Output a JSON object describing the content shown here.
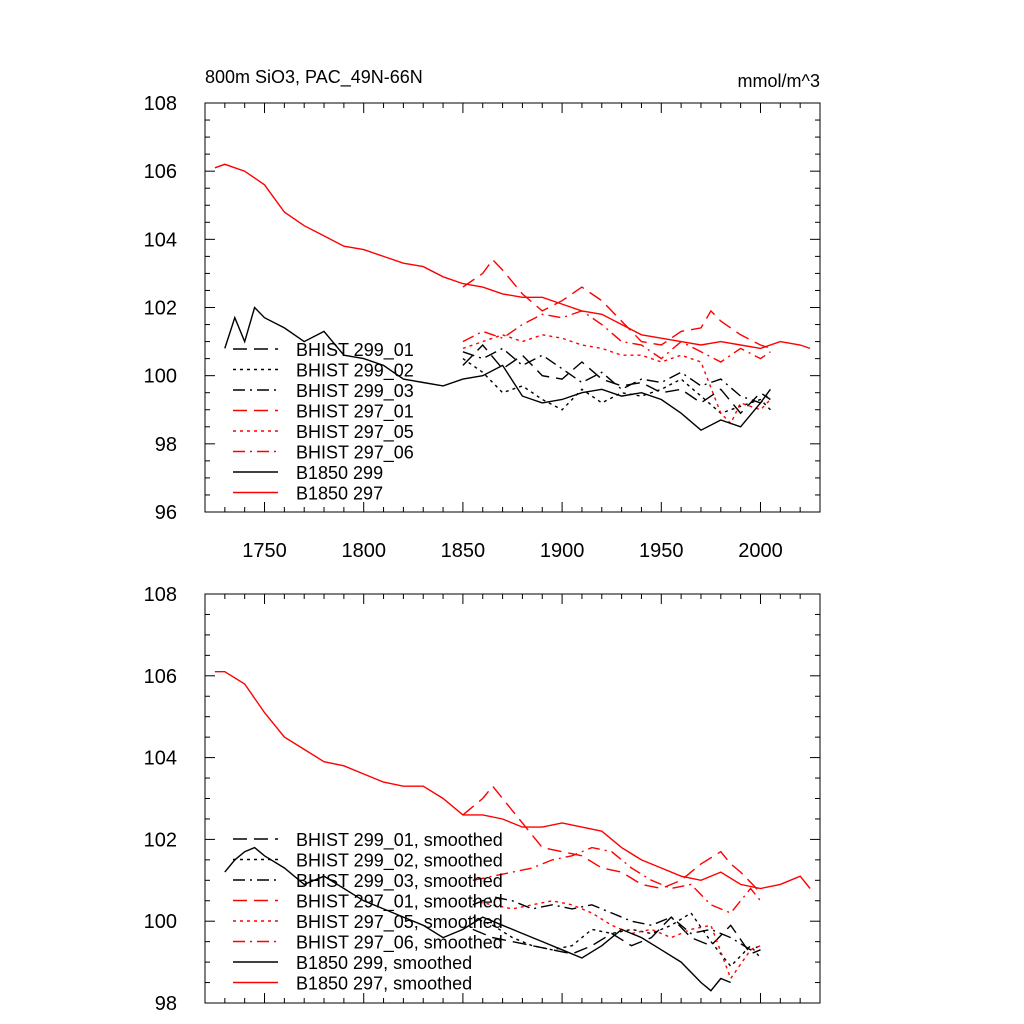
{
  "chart_data": [
    {
      "type": "line",
      "title": "800m SiO3, PAC_49N-66N",
      "units": "mmol/m^3",
      "xlabel": "",
      "ylabel": "",
      "xlim": [
        1720,
        2030
      ],
      "ylim": [
        96,
        108
      ],
      "x_ticks": [
        1750,
        1800,
        1850,
        1900,
        1950,
        2000
      ],
      "y_ticks": [
        96,
        98,
        100,
        102,
        104,
        106,
        108
      ],
      "grid": false,
      "legend_position": "bottom-left",
      "series": [
        {
          "name": "BHIST 299_01",
          "color": "#000000",
          "dash": "dashed",
          "x": [
            1850,
            1860,
            1870,
            1880,
            1890,
            1900,
            1910,
            1920,
            1930,
            1940,
            1950,
            1960,
            1970,
            1980,
            1990,
            2000,
            2005
          ],
          "y": [
            100.3,
            100.9,
            100.2,
            100.6,
            100.0,
            99.9,
            100.4,
            99.9,
            99.7,
            99.8,
            99.5,
            99.6,
            99.2,
            99.6,
            98.9,
            99.5,
            99.3
          ]
        },
        {
          "name": "BHIST 299_02",
          "color": "#000000",
          "dash": "dotted",
          "x": [
            1850,
            1860,
            1870,
            1880,
            1890,
            1900,
            1910,
            1920,
            1930,
            1940,
            1950,
            1960,
            1970,
            1980,
            1990,
            2000,
            2005
          ],
          "y": [
            100.5,
            100.1,
            99.5,
            99.7,
            99.3,
            99.0,
            99.6,
            99.2,
            99.5,
            99.4,
            99.6,
            99.9,
            99.4,
            98.9,
            99.1,
            99.3,
            99.0
          ]
        },
        {
          "name": "BHIST 299_03",
          "color": "#000000",
          "dash": "dashdot",
          "x": [
            1850,
            1860,
            1870,
            1880,
            1890,
            1900,
            1910,
            1920,
            1930,
            1940,
            1950,
            1960,
            1970,
            1980,
            1990,
            2000,
            2005
          ],
          "y": [
            100.7,
            100.5,
            100.8,
            100.3,
            100.6,
            100.2,
            99.8,
            100.1,
            99.6,
            99.9,
            99.8,
            100.1,
            99.7,
            99.9,
            99.4,
            99.2,
            99.5
          ]
        },
        {
          "name": "BHIST 297_01",
          "color": "#ff0000",
          "dash": "dashed",
          "x": [
            1850,
            1860,
            1865,
            1870,
            1880,
            1890,
            1900,
            1910,
            1920,
            1930,
            1940,
            1950,
            1960,
            1970,
            1975,
            1980,
            1990,
            2000,
            2005
          ],
          "y": [
            102.6,
            103.0,
            103.4,
            103.1,
            102.4,
            101.9,
            102.2,
            102.6,
            102.2,
            101.6,
            101.0,
            100.9,
            101.3,
            101.4,
            101.9,
            101.6,
            101.2,
            100.9,
            100.8
          ]
        },
        {
          "name": "BHIST 297_05",
          "color": "#ff0000",
          "dash": "dotted",
          "x": [
            1850,
            1860,
            1870,
            1880,
            1890,
            1900,
            1910,
            1920,
            1930,
            1940,
            1950,
            1960,
            1970,
            1980,
            1985,
            1990,
            2000,
            2005
          ],
          "y": [
            100.8,
            101.0,
            101.2,
            101.0,
            101.2,
            101.1,
            100.9,
            100.8,
            100.6,
            100.6,
            100.4,
            100.6,
            100.4,
            98.9,
            98.6,
            99.2,
            99.0,
            99.3
          ]
        },
        {
          "name": "BHIST 297_06",
          "color": "#ff0000",
          "dash": "dashdot",
          "x": [
            1850,
            1860,
            1870,
            1880,
            1890,
            1900,
            1910,
            1920,
            1930,
            1940,
            1950,
            1960,
            1970,
            1980,
            1990,
            2000,
            2005
          ],
          "y": [
            101.0,
            101.3,
            101.1,
            101.5,
            101.8,
            101.7,
            101.9,
            101.5,
            101.0,
            100.9,
            100.5,
            101.0,
            100.7,
            100.4,
            100.8,
            100.5,
            100.7
          ]
        },
        {
          "name": "B1850 299",
          "color": "#000000",
          "dash": "solid",
          "x": [
            1730,
            1735,
            1740,
            1745,
            1750,
            1760,
            1770,
            1780,
            1790,
            1800,
            1810,
            1820,
            1830,
            1840,
            1850,
            1860,
            1870,
            1880,
            1890,
            1900,
            1910,
            1920,
            1930,
            1940,
            1950,
            1960,
            1970,
            1980,
            1990,
            2000,
            2005
          ],
          "y": [
            100.8,
            101.7,
            101.0,
            102.0,
            101.7,
            101.4,
            101.0,
            101.3,
            100.6,
            100.5,
            100.3,
            99.9,
            99.8,
            99.7,
            99.9,
            100.0,
            100.3,
            99.4,
            99.2,
            99.3,
            99.5,
            99.6,
            99.4,
            99.5,
            99.3,
            98.9,
            98.4,
            98.7,
            98.5,
            99.2,
            99.6
          ]
        },
        {
          "name": "B1850 297",
          "color": "#ff0000",
          "dash": "solid",
          "x": [
            1725,
            1730,
            1740,
            1750,
            1760,
            1770,
            1780,
            1790,
            1800,
            1810,
            1820,
            1830,
            1840,
            1850,
            1860,
            1870,
            1880,
            1890,
            1900,
            1910,
            1920,
            1930,
            1940,
            1950,
            1960,
            1970,
            1980,
            1990,
            2000,
            2010,
            2020,
            2025
          ],
          "y": [
            106.1,
            106.2,
            106.0,
            105.6,
            104.8,
            104.4,
            104.1,
            103.8,
            103.7,
            103.5,
            103.3,
            103.2,
            102.9,
            102.7,
            102.6,
            102.4,
            102.3,
            102.3,
            102.1,
            101.9,
            101.8,
            101.5,
            101.2,
            101.1,
            101.0,
            100.9,
            101.0,
            100.9,
            100.8,
            101.0,
            100.9,
            100.8
          ]
        }
      ]
    },
    {
      "type": "line",
      "title": "",
      "xlabel": "",
      "ylabel": "",
      "xlim": [
        1720,
        2030
      ],
      "ylim": [
        98,
        108
      ],
      "y_ticks": [
        98,
        100,
        102,
        104,
        106,
        108
      ],
      "grid": false,
      "legend_position": "bottom-left",
      "series": [
        {
          "name": "BHIST 299_01, smoothed",
          "color": "#000000",
          "dash": "dashed",
          "x": [
            1855,
            1865,
            1875,
            1885,
            1895,
            1905,
            1915,
            1925,
            1935,
            1945,
            1955,
            1965,
            1975,
            1985,
            1995,
            2000
          ],
          "y": [
            99.8,
            99.6,
            99.5,
            99.4,
            99.3,
            99.2,
            99.4,
            99.7,
            99.4,
            99.6,
            100.1,
            99.6,
            99.4,
            99.9,
            99.2,
            99.3
          ]
        },
        {
          "name": "BHIST 299_02, smoothed",
          "color": "#000000",
          "dash": "dotted",
          "x": [
            1855,
            1865,
            1875,
            1885,
            1895,
            1905,
            1915,
            1925,
            1935,
            1945,
            1955,
            1965,
            1975,
            1985,
            1995,
            2000
          ],
          "y": [
            100.1,
            99.9,
            99.6,
            99.4,
            99.3,
            99.4,
            99.8,
            99.7,
            99.8,
            99.7,
            99.9,
            100.2,
            99.5,
            98.9,
            99.4,
            99.1
          ]
        },
        {
          "name": "BHIST 299_03, smoothed",
          "color": "#000000",
          "dash": "dashdot",
          "x": [
            1855,
            1865,
            1875,
            1885,
            1895,
            1905,
            1915,
            1925,
            1935,
            1945,
            1955,
            1965,
            1975,
            1985,
            1995,
            2000
          ],
          "y": [
            100.4,
            100.6,
            100.5,
            100.3,
            100.4,
            100.3,
            100.4,
            100.2,
            100.0,
            99.9,
            100.1,
            99.7,
            99.8,
            99.6,
            99.3,
            99.4
          ]
        },
        {
          "name": "BHIST 297_01, smoothed",
          "color": "#ff0000",
          "dash": "dashed",
          "x": [
            1850,
            1860,
            1865,
            1870,
            1880,
            1890,
            1900,
            1910,
            1920,
            1930,
            1940,
            1950,
            1960,
            1970,
            1980,
            1985,
            1990,
            2000
          ],
          "y": [
            102.6,
            103.0,
            103.3,
            103.0,
            102.4,
            101.8,
            101.7,
            101.6,
            101.3,
            101.2,
            100.9,
            100.8,
            101.0,
            101.4,
            101.7,
            101.4,
            101.2,
            100.7
          ]
        },
        {
          "name": "BHIST 297_05, smoothed",
          "color": "#ff0000",
          "dash": "dotted",
          "x": [
            1855,
            1865,
            1875,
            1885,
            1895,
            1905,
            1915,
            1925,
            1935,
            1945,
            1955,
            1965,
            1975,
            1985,
            1995,
            2000
          ],
          "y": [
            100.5,
            100.4,
            100.3,
            100.4,
            100.5,
            100.4,
            100.2,
            99.9,
            99.7,
            99.8,
            99.6,
            99.8,
            99.9,
            98.6,
            99.3,
            99.4
          ]
        },
        {
          "name": "BHIST 297_06, smoothed",
          "color": "#ff0000",
          "dash": "dashdot",
          "x": [
            1855,
            1865,
            1875,
            1885,
            1895,
            1905,
            1915,
            1925,
            1935,
            1945,
            1955,
            1965,
            1975,
            1985,
            1995,
            2000
          ],
          "y": [
            101.0,
            101.1,
            101.2,
            101.3,
            101.5,
            101.6,
            101.8,
            101.7,
            101.3,
            101.0,
            100.8,
            100.9,
            100.4,
            100.2,
            100.8,
            100.5
          ]
        },
        {
          "name": "B1850 299, smoothed",
          "color": "#000000",
          "dash": "solid",
          "x": [
            1730,
            1735,
            1740,
            1745,
            1750,
            1760,
            1770,
            1780,
            1790,
            1800,
            1810,
            1820,
            1830,
            1840,
            1850,
            1860,
            1870,
            1880,
            1890,
            1900,
            1910,
            1920,
            1930,
            1940,
            1950,
            1960,
            1970,
            1975,
            1980,
            1985
          ],
          "y": [
            101.2,
            101.5,
            101.7,
            101.8,
            101.6,
            101.3,
            100.9,
            101.1,
            100.8,
            100.5,
            100.3,
            100.1,
            99.9,
            99.6,
            99.8,
            100.1,
            99.9,
            99.7,
            99.5,
            99.3,
            99.1,
            99.4,
            99.8,
            99.6,
            99.3,
            99.0,
            98.5,
            98.3,
            98.6,
            98.5
          ]
        },
        {
          "name": "B1850 297, smoothed",
          "color": "#ff0000",
          "dash": "solid",
          "x": [
            1725,
            1730,
            1740,
            1750,
            1760,
            1770,
            1780,
            1790,
            1800,
            1810,
            1820,
            1830,
            1840,
            1850,
            1860,
            1870,
            1880,
            1890,
            1900,
            1910,
            1920,
            1930,
            1940,
            1950,
            1960,
            1970,
            1980,
            1990,
            2000,
            2010,
            2020,
            2025
          ],
          "y": [
            106.1,
            106.1,
            105.8,
            105.1,
            104.5,
            104.2,
            103.9,
            103.8,
            103.6,
            103.4,
            103.3,
            103.3,
            103.0,
            102.6,
            102.6,
            102.5,
            102.3,
            102.3,
            102.4,
            102.3,
            102.2,
            101.8,
            101.5,
            101.3,
            101.1,
            101.0,
            101.2,
            100.9,
            100.8,
            100.9,
            101.1,
            100.8
          ]
        }
      ]
    }
  ]
}
